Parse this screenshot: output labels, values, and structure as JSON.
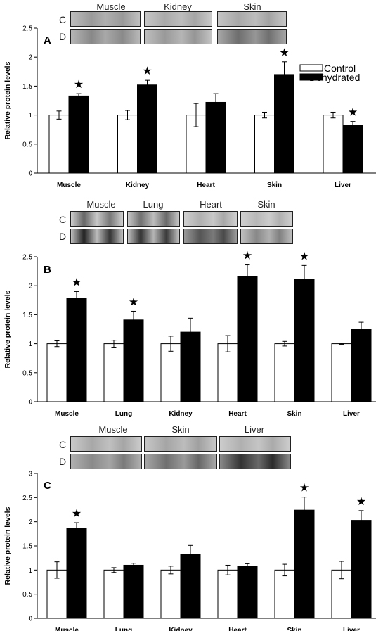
{
  "chart_data": [
    {
      "type": "bar",
      "panel": "A",
      "categories": [
        "Muscle",
        "Kidney",
        "Heart",
        "Skin",
        "Liver"
      ],
      "series": [
        {
          "name": "Control",
          "values": [
            1.0,
            1.0,
            1.0,
            1.0,
            1.0
          ],
          "errors": [
            0.07,
            0.08,
            0.2,
            0.05,
            0.05
          ],
          "color": "#ffffff"
        },
        {
          "name": "Dehydrated",
          "values": [
            1.33,
            1.52,
            1.22,
            1.7,
            0.83
          ],
          "errors": [
            0.04,
            0.08,
            0.15,
            0.22,
            0.06
          ],
          "color": "#000000"
        }
      ],
      "significant": [
        true,
        true,
        false,
        true,
        true
      ],
      "star_symbol": "★",
      "ylabel": "Relative protein levels",
      "ylim": [
        0,
        2.5
      ],
      "yticks": [
        "0",
        "0.5",
        "1",
        "1.5",
        "2",
        "2.5"
      ],
      "legend": [
        "Control",
        "Dehydrated"
      ],
      "legend_position": "top-right",
      "blots": {
        "row_labels": [
          "C",
          "D"
        ],
        "tissues": [
          "Muscle",
          "Kidney",
          "Skin"
        ]
      }
    },
    {
      "type": "bar",
      "panel": "B",
      "categories": [
        "Muscle",
        "Lung",
        "Kidney",
        "Heart",
        "Skin",
        "Liver"
      ],
      "series": [
        {
          "name": "Control",
          "values": [
            1.0,
            1.0,
            1.0,
            1.0,
            1.0,
            1.0
          ],
          "errors": [
            0.05,
            0.06,
            0.13,
            0.14,
            0.04,
            0.01
          ],
          "color": "#ffffff"
        },
        {
          "name": "Dehydrated",
          "values": [
            1.78,
            1.41,
            1.2,
            2.16,
            2.11,
            1.25
          ],
          "errors": [
            0.12,
            0.15,
            0.24,
            0.2,
            0.24,
            0.12
          ],
          "color": "#000000"
        }
      ],
      "significant": [
        true,
        true,
        false,
        true,
        true,
        false
      ],
      "star_symbol": "★",
      "ylabel": "Relative protein levels",
      "ylim": [
        0,
        2.5
      ],
      "yticks": [
        "0",
        "0.5",
        "1",
        "1.5",
        "2",
        "2.5"
      ],
      "blots": {
        "row_labels": [
          "C",
          "D"
        ],
        "tissues": [
          "Muscle",
          "Lung",
          "Heart",
          "Skin"
        ]
      }
    },
    {
      "type": "bar",
      "panel": "C",
      "categories": [
        "Muscle",
        "Lung",
        "Kidney",
        "Heart",
        "Skin",
        "Liver"
      ],
      "series": [
        {
          "name": "Control",
          "values": [
            1.0,
            1.0,
            1.0,
            1.0,
            1.0,
            1.0
          ],
          "errors": [
            0.17,
            0.05,
            0.08,
            0.1,
            0.12,
            0.18
          ],
          "color": "#ffffff"
        },
        {
          "name": "Dehydrated",
          "values": [
            1.86,
            1.1,
            1.33,
            1.08,
            2.24,
            2.03
          ],
          "errors": [
            0.12,
            0.04,
            0.18,
            0.05,
            0.27,
            0.2
          ],
          "color": "#000000"
        }
      ],
      "significant": [
        true,
        false,
        false,
        false,
        true,
        true
      ],
      "star_symbol": "★",
      "ylabel": "Relative protein levels",
      "ylim": [
        0,
        3
      ],
      "yticks": [
        "0",
        "0.5",
        "1",
        "1.5",
        "2",
        "2.5",
        "3"
      ],
      "blots": {
        "row_labels": [
          "C",
          "D"
        ],
        "tissues": [
          "Muscle",
          "Skin",
          "Liver"
        ]
      }
    }
  ]
}
